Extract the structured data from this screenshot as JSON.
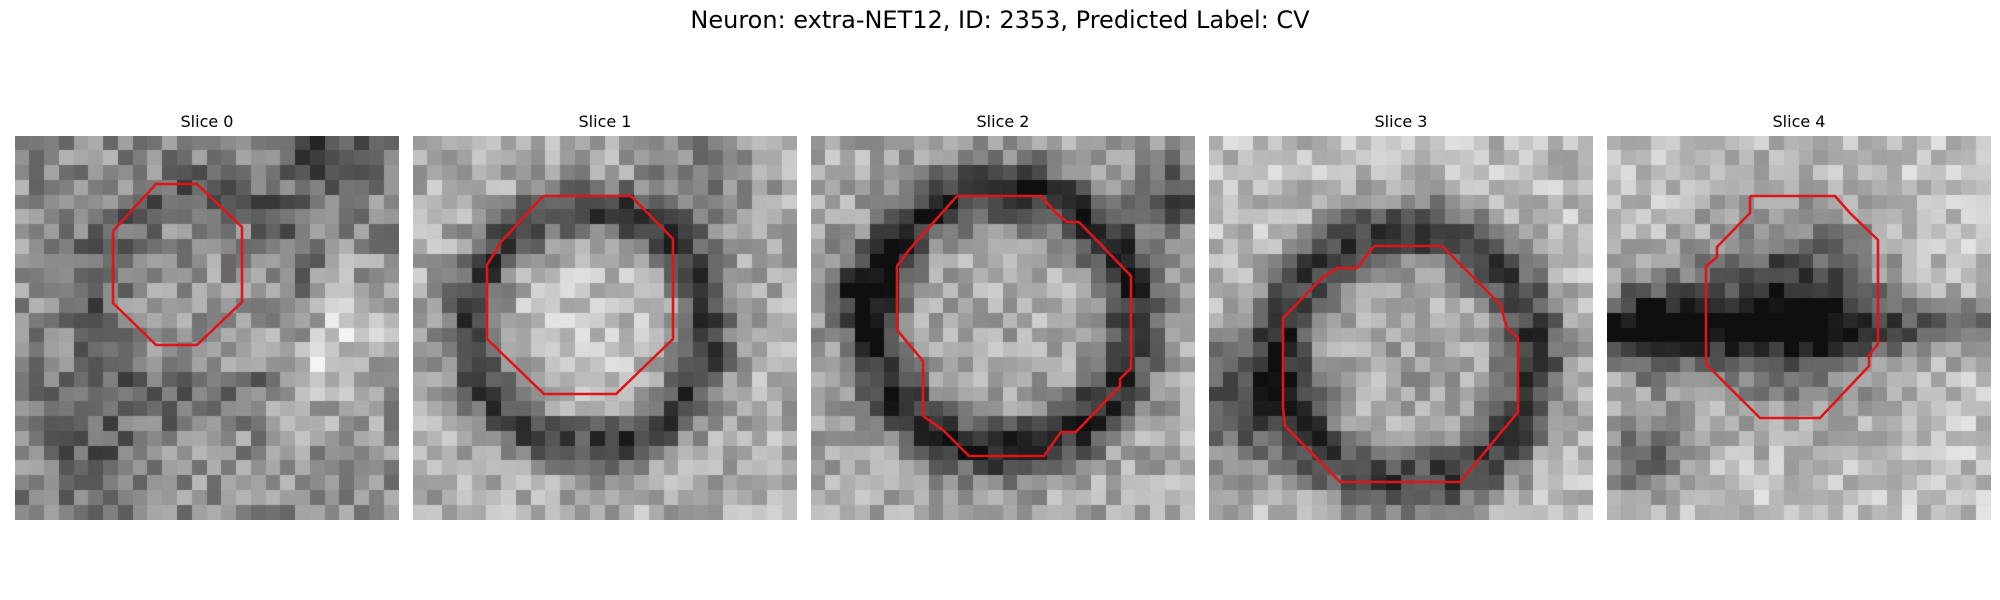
{
  "figure": {
    "title": "Neuron: extra-NET12, ID: 2353, Predicted Label: CV",
    "outline_color": "#e0151a",
    "panels": [
      {
        "label": "Slice 0"
      },
      {
        "label": "Slice 1"
      },
      {
        "label": "Slice 2"
      },
      {
        "label": "Slice 3"
      },
      {
        "label": "Slice 4"
      }
    ]
  }
}
